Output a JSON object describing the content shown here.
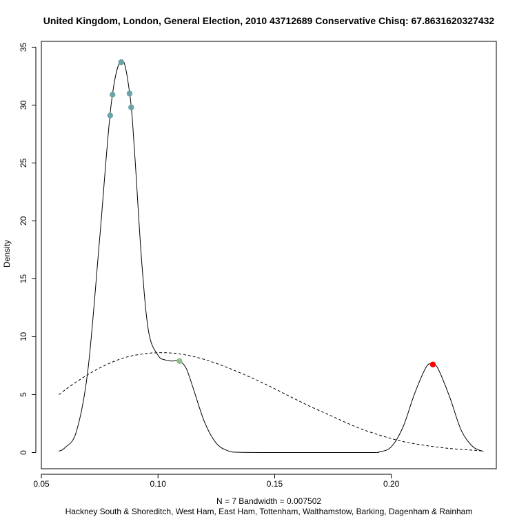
{
  "chart_data": {
    "type": "line",
    "title": "United Kingdom, London, General Election, 2010 43712689 Conservative Chisq: 67.8631620327432",
    "xlabel": "N = 7   Bandwidth = 0.007502",
    "subtitle": "Hackney South & Shoreditch, West Ham, East Ham, Tottenham, Walthamstow, Barking, Dagenham & Rainham",
    "ylabel": "Density",
    "xlim": [
      0.05,
      0.245
    ],
    "ylim": [
      -1.4,
      35.5
    ],
    "x_ticks": [
      0.05,
      0.1,
      0.15,
      0.2
    ],
    "x_tick_labels": [
      "0.05",
      "0.10",
      "0.15",
      "0.20"
    ],
    "y_ticks": [
      0,
      5,
      10,
      15,
      20,
      25,
      30,
      35
    ],
    "y_tick_labels": [
      "0",
      "5",
      "10",
      "15",
      "20",
      "25",
      "30",
      "35"
    ],
    "grid": false,
    "series": [
      {
        "style": "solid",
        "points": [
          [
            0.0575,
            0.12
          ],
          [
            0.06,
            0.4
          ],
          [
            0.065,
            1.8
          ],
          [
            0.07,
            7.2
          ],
          [
            0.075,
            18.5
          ],
          [
            0.08,
            30.2
          ],
          [
            0.0845,
            33.9
          ],
          [
            0.088,
            30.8
          ],
          [
            0.09,
            25.8
          ],
          [
            0.093,
            16.5
          ],
          [
            0.096,
            10.4
          ],
          [
            0.1,
            8.4
          ],
          [
            0.103,
            8.0
          ],
          [
            0.106,
            7.9
          ],
          [
            0.109,
            7.9
          ],
          [
            0.112,
            7.3
          ],
          [
            0.115,
            5.6
          ],
          [
            0.12,
            2.6
          ],
          [
            0.125,
            0.8
          ],
          [
            0.13,
            0.15
          ],
          [
            0.135,
            0.02
          ],
          [
            0.15,
            0.0
          ],
          [
            0.19,
            0.0
          ],
          [
            0.195,
            0.06
          ],
          [
            0.2,
            0.5
          ],
          [
            0.205,
            2.2
          ],
          [
            0.21,
            5.1
          ],
          [
            0.215,
            7.4
          ],
          [
            0.2175,
            7.6
          ],
          [
            0.22,
            7.25
          ],
          [
            0.225,
            4.8
          ],
          [
            0.23,
            1.9
          ],
          [
            0.235,
            0.5
          ],
          [
            0.2395,
            0.1
          ]
        ]
      },
      {
        "style": "dashed",
        "points": [
          [
            0.0575,
            5.0
          ],
          [
            0.065,
            6.1
          ],
          [
            0.075,
            7.3
          ],
          [
            0.085,
            8.15
          ],
          [
            0.095,
            8.55
          ],
          [
            0.105,
            8.6
          ],
          [
            0.115,
            8.3
          ],
          [
            0.125,
            7.7
          ],
          [
            0.135,
            6.9
          ],
          [
            0.145,
            6.0
          ],
          [
            0.155,
            5.0
          ],
          [
            0.165,
            4.0
          ],
          [
            0.175,
            3.1
          ],
          [
            0.185,
            2.2
          ],
          [
            0.195,
            1.5
          ],
          [
            0.205,
            0.95
          ],
          [
            0.215,
            0.6
          ],
          [
            0.225,
            0.35
          ],
          [
            0.235,
            0.2
          ],
          [
            0.2395,
            0.13
          ]
        ]
      }
    ],
    "points": [
      {
        "x": 0.0795,
        "y": 29.1,
        "color": "#6ba3a8"
      },
      {
        "x": 0.0805,
        "y": 30.9,
        "color": "#6ba3a8"
      },
      {
        "x": 0.0842,
        "y": 33.7,
        "color": "#6ba3a8"
      },
      {
        "x": 0.0878,
        "y": 31.0,
        "color": "#6ba3a8"
      },
      {
        "x": 0.0885,
        "y": 29.8,
        "color": "#6ba3a8"
      },
      {
        "x": 0.1092,
        "y": 7.9,
        "color": "#8cc08c"
      },
      {
        "x": 0.2178,
        "y": 7.6,
        "color": "#ff0000"
      }
    ]
  }
}
